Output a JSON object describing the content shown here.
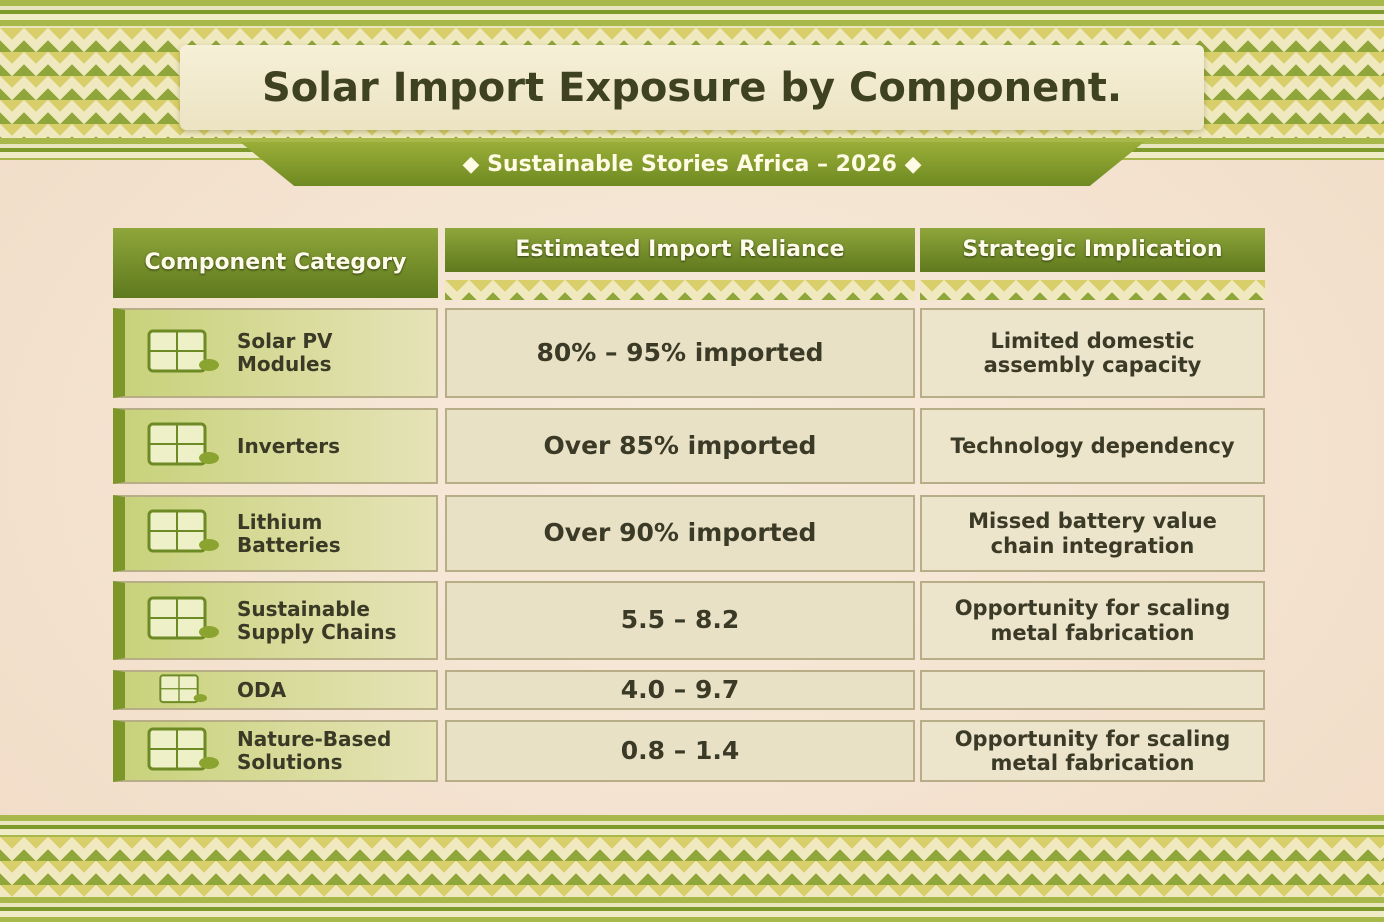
{
  "header": {
    "title": "Solar Import Exposure by Component.",
    "subtitle": "Sustainable Stories Africa – 2026"
  },
  "table": {
    "columns": [
      "Component Category",
      "Estimated Import Reliance",
      "Strategic Implication"
    ],
    "rows": [
      {
        "category": "Solar PV Modules",
        "reliance": "80% – 95% imported",
        "implication": "Limited domestic assembly capacity"
      },
      {
        "category": "Inverters",
        "reliance": "Over 85% imported",
        "implication": "Technology dependency"
      },
      {
        "category": "Lithium Batteries",
        "reliance": "Over 90% imported",
        "implication": "Missed battery value chain integration"
      },
      {
        "category": "Sustainable Supply Chains",
        "reliance": "5.5 – 8.2",
        "implication": "Opportunity for scaling metal fabrication"
      },
      {
        "category": "ODA",
        "reliance": "4.0 – 9.7"
      },
      {
        "category": "Nature-Based Solutions",
        "reliance": "0.8 – 1.4",
        "implication": "Opportunity for scaling metal fabrication"
      }
    ]
  }
}
